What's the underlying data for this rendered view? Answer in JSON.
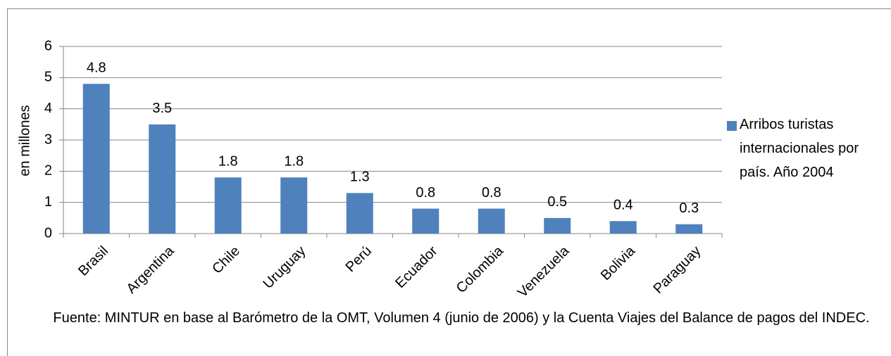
{
  "chart_data": {
    "type": "bar",
    "y_axis_label": "en millones",
    "categories": [
      "Brasil",
      "Argentina",
      "Chile",
      "Uruguay",
      "Perú",
      "Ecuador",
      "Colombia",
      "Venezuela",
      "Bolivia",
      "Paraguay"
    ],
    "series": [
      {
        "name": "Arribos turistas internacionales por país. Año 2004",
        "color": "#4f81bd",
        "values": [
          4.8,
          3.5,
          1.8,
          1.8,
          1.3,
          0.8,
          0.8,
          0.5,
          0.4,
          0.3
        ]
      }
    ],
    "ylim": [
      0,
      6
    ],
    "yticks": [
      0,
      1,
      2,
      3,
      4,
      5,
      6
    ],
    "grid": true,
    "legend": "right",
    "source": "Fuente: MINTUR en base al Barómetro de la OMT, Volumen 4 (junio de 2006) y la Cuenta Viajes del Balance de pagos del INDEC."
  }
}
